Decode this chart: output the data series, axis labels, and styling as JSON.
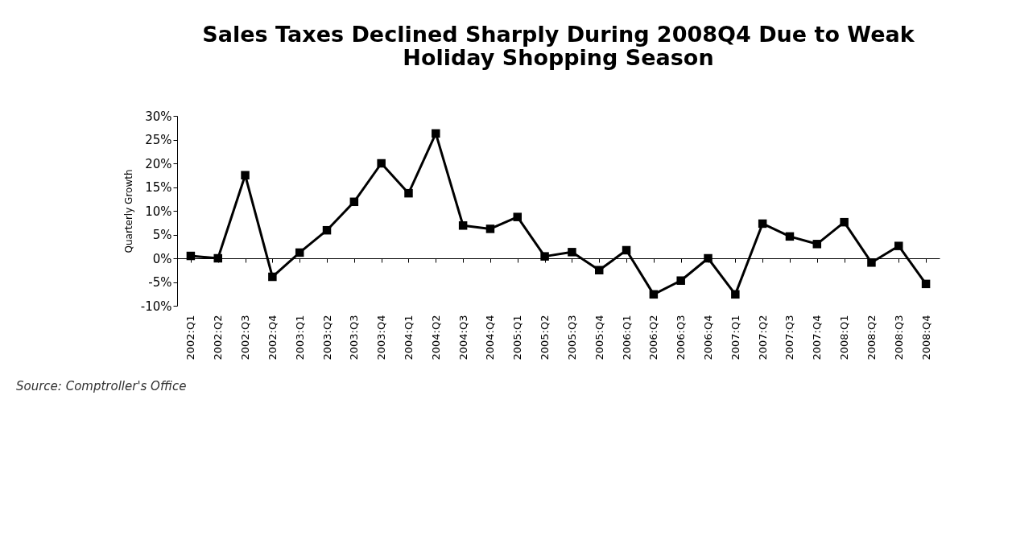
{
  "chart_data": {
    "type": "line",
    "title": "Sales Taxes Declined Sharply During 2008Q4 Due to Weak Holiday Shopping Season",
    "ylabel": "Quarterly Growth",
    "categories": [
      "2002:Q1",
      "2002:Q2",
      "2002:Q3",
      "2002:Q4",
      "2003:Q1",
      "2003:Q2",
      "2003:Q3",
      "2003:Q4",
      "2004:Q1",
      "2004:Q2",
      "2004:Q3",
      "2004:Q4",
      "2005:Q1",
      "2005:Q2",
      "2005:Q3",
      "2005:Q4",
      "2006:Q1",
      "2006:Q2",
      "2006:Q3",
      "2006:Q4",
      "2007:Q1",
      "2007:Q2",
      "2007:Q3",
      "2007:Q4",
      "2008:Q1",
      "2008:Q2",
      "2008:Q3",
      "2008:Q4"
    ],
    "series": [
      {
        "color": "#000000",
        "values": [
          0.5,
          0,
          17.5,
          -3.9,
          1.2,
          5.9,
          11.9,
          20.0,
          13.7,
          26.3,
          6.9,
          6.2,
          8.7,
          0.4,
          1.3,
          -2.5,
          1.7,
          -7.6,
          -4.7,
          0,
          -7.6,
          7.3,
          4.6,
          3.0,
          7.6,
          -0.9,
          2.6,
          -5.4
        ]
      }
    ],
    "ylim": [
      -10,
      30
    ],
    "yticks": [
      {
        "value": -10,
        "label": "-10%"
      },
      {
        "value": -5,
        "label": "-5%"
      },
      {
        "value": 0,
        "label": "0%"
      },
      {
        "value": 5,
        "label": "5%"
      },
      {
        "value": 10,
        "label": "10%"
      },
      {
        "value": 15,
        "label": "15%"
      },
      {
        "value": 20,
        "label": "20%"
      },
      {
        "value": 25,
        "label": "25%"
      },
      {
        "value": 30,
        "label": "30%"
      }
    ],
    "marker": "square",
    "line_style": "solid",
    "annotations": [
      "Source: Comptroller's Office"
    ]
  }
}
